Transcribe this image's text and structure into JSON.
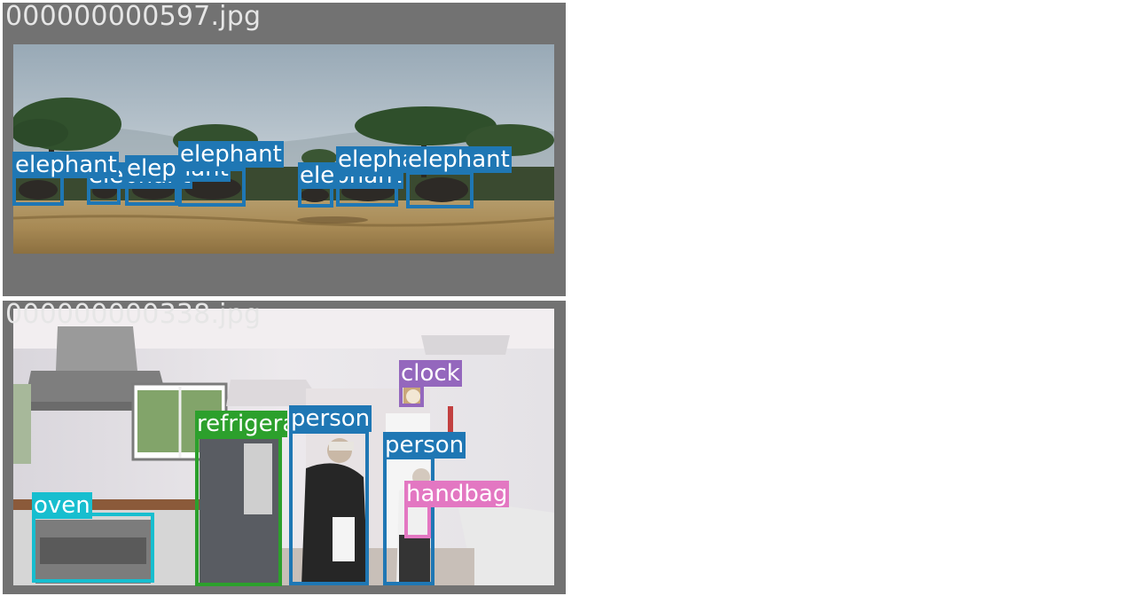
{
  "tiles": [
    {
      "filename": "000000000597.jpg",
      "detections": [
        {
          "label": "elephant",
          "color": "#1f77b4"
        },
        {
          "label": "elephant",
          "color": "#1f77b4"
        },
        {
          "label": "elephant",
          "color": "#1f77b4"
        },
        {
          "label": "elephant",
          "color": "#1f77b4"
        },
        {
          "label": "elephant",
          "color": "#1f77b4"
        },
        {
          "label": "elephant",
          "color": "#1f77b4"
        },
        {
          "label": "elephant",
          "color": "#1f77b4"
        },
        {
          "label": "elephant",
          "color": "#1f77b4"
        }
      ]
    },
    {
      "filename": "000000000338.jpg",
      "detections": [
        {
          "label": "clock",
          "color": "#9467bd"
        },
        {
          "label": "refrigerator",
          "color": "#2ca02c"
        },
        {
          "label": "person",
          "color": "#1f77b4"
        },
        {
          "label": "person",
          "color": "#1f77b4"
        },
        {
          "label": "handbag",
          "color": "#e377c2"
        },
        {
          "label": "oven",
          "color": "#17becf"
        }
      ]
    }
  ]
}
